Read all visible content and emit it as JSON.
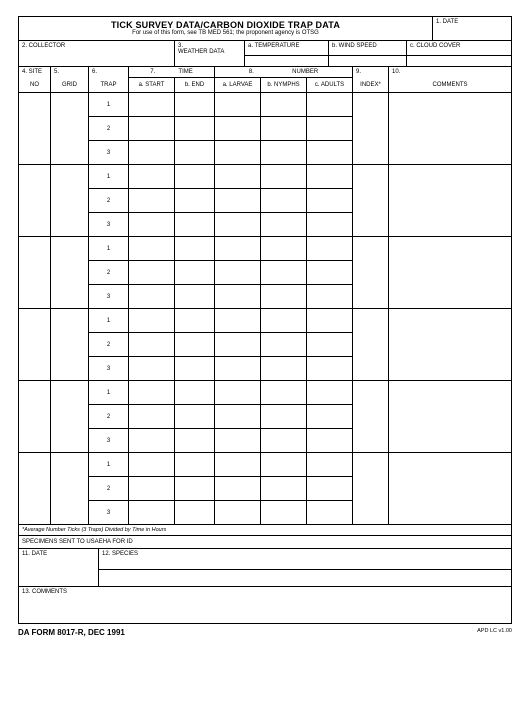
{
  "title": "TICK SURVEY DATA/CARBON DIOXIDE TRAP DATA",
  "subtitle": "For use of this form, see TB MED 561; the proponent agency is OTSG",
  "field1": "1.   DATE",
  "field2": "2.    COLLECTOR",
  "field3": "3.\nWEATHER DATA",
  "field3a": "a.  TEMPERATURE",
  "field3b": "b.  WIND SPEED",
  "field3c": "c.  CLOUD COVER",
  "col4_a": "4.    SITE",
  "col4_b": "NO",
  "col5_a": "5.",
  "col5_b": "GRID",
  "col6_a": "6.",
  "col6_b": "TRAP",
  "col7": "7.              TIME",
  "col7a": "a.  START",
  "col7b": "b.  END",
  "col8": "8.                       NUMBER",
  "col8a": "a.  LARVAE",
  "col8b": "b.  NYMPHS",
  "col8c": "c.  ADULTS",
  "col9_a": "9.",
  "col9_b": "INDEX*",
  "col10_a": "10.",
  "col10_b": "COMMENTS",
  "trap_labels": [
    "1",
    "2",
    "3"
  ],
  "site_count": 6,
  "footnote": "*Average Number Ticks (3 Traps) Divided by Time in Hours",
  "specimens_hdr": "SPECIMENS SENT TO USAEHA FOR ID",
  "field11": "11.  DATE",
  "field12": "12.  SPECIES",
  "field13": "13.  COMMENTS",
  "form_id": "DA FORM 8017-R, DEC 1991",
  "apd": "APD LC v1.00",
  "widths": {
    "site": 32,
    "grid": 38,
    "trap": 40,
    "start": 46,
    "end": 40,
    "larvae": 46,
    "nymphs": 46,
    "adults": 46,
    "index": 36,
    "comments": 0
  },
  "row2": {
    "collector_w": 156,
    "weather_label_w": 70,
    "abc_w": 72
  }
}
